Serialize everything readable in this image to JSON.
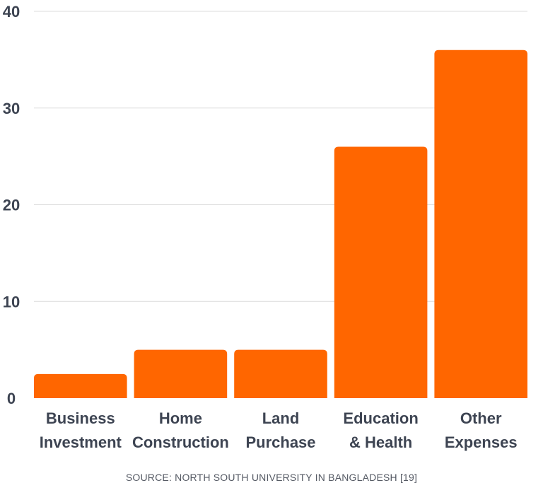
{
  "chart_data": {
    "type": "bar",
    "categories": [
      [
        "Business",
        "Investment"
      ],
      [
        "Home",
        "Construction"
      ],
      [
        "Land",
        "Purchase"
      ],
      [
        "Education",
        "& Health"
      ],
      [
        "Other",
        "Expenses"
      ]
    ],
    "values": [
      2.5,
      5,
      5,
      26,
      36
    ],
    "ylim": [
      0,
      40
    ],
    "yticks": [
      "0",
      "10",
      "20",
      "30",
      "40"
    ],
    "title": "",
    "xlabel": "",
    "ylabel": "",
    "grid": true,
    "legend": "none"
  },
  "source": "SOURCE: NORTH SOUTH UNIVERSITY IN BANGLADESH  [19]",
  "colors": {
    "bar": "#ff6600",
    "text": "#3d4452",
    "grid": "#dcdcdc",
    "source_text": "#555a64"
  }
}
